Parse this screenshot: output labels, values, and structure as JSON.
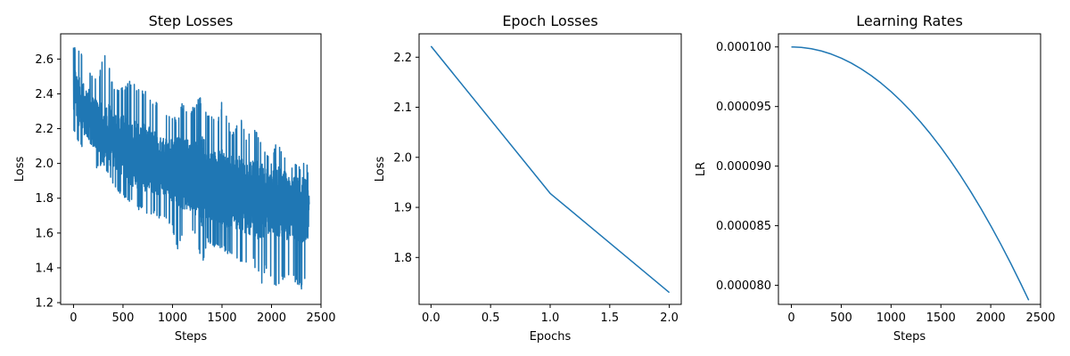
{
  "figure": {
    "background": "#ffffff",
    "line_color": "#1f77b4"
  },
  "chart_data": [
    {
      "id": "step-losses",
      "type": "line",
      "title": "Step Losses",
      "xlabel": "Steps",
      "ylabel": "Loss",
      "xlim": [
        -130,
        2500
      ],
      "ylim": [
        1.19,
        2.745
      ],
      "xticks": [
        0,
        500,
        1000,
        1500,
        2000,
        2500
      ],
      "yticks": [
        1.2,
        1.4,
        1.6,
        1.8,
        2.0,
        2.2,
        2.4,
        2.6
      ],
      "ytick_format": "1",
      "grid": false,
      "legend": "none",
      "series": [
        {
          "x": [
            0,
            50,
            100,
            150,
            200,
            250,
            300,
            350,
            400,
            450,
            500,
            550,
            600,
            650,
            700,
            750,
            800,
            850,
            900,
            950,
            1000,
            1050,
            1100,
            1150,
            1200,
            1250,
            1300,
            1350,
            1400,
            1450,
            1500,
            1550,
            1600,
            1650,
            1700,
            1750,
            1800,
            1850,
            1900,
            1950,
            2000,
            2050,
            2100,
            2150,
            2200,
            2250,
            2300,
            2350,
            2381
          ],
          "y_mean": [
            2.42,
            2.37,
            2.32,
            2.28,
            2.24,
            2.21,
            2.19,
            2.17,
            2.14,
            2.12,
            2.1,
            2.08,
            2.06,
            2.05,
            2.04,
            2.03,
            2.01,
            2.0,
            1.99,
            1.98,
            1.96,
            1.95,
            1.94,
            1.93,
            1.92,
            1.91,
            1.9,
            1.89,
            1.88,
            1.87,
            1.86,
            1.85,
            1.84,
            1.83,
            1.82,
            1.81,
            1.8,
            1.79,
            1.79,
            1.78,
            1.78,
            1.77,
            1.76,
            1.75,
            1.74,
            1.74,
            1.73,
            1.72,
            1.71
          ],
          "y_max": [
            2.68,
            2.67,
            2.61,
            2.55,
            2.5,
            2.47,
            2.66,
            2.59,
            2.45,
            2.42,
            2.44,
            2.48,
            2.47,
            2.45,
            2.42,
            2.44,
            2.36,
            2.35,
            2.26,
            2.3,
            2.28,
            2.26,
            2.35,
            2.33,
            2.32,
            2.36,
            2.4,
            2.3,
            2.28,
            2.25,
            2.36,
            2.27,
            2.18,
            2.22,
            2.25,
            2.15,
            2.24,
            2.2,
            2.13,
            2.07,
            2.0,
            2.15,
            2.08,
            2.02,
            1.97,
            2.01,
            1.98,
            2.03,
            1.92
          ],
          "y_min": [
            2.18,
            2.11,
            2.07,
            2.0,
            1.96,
            1.97,
            2.0,
            1.93,
            1.88,
            1.82,
            1.8,
            1.79,
            1.76,
            1.73,
            1.74,
            1.7,
            1.71,
            1.68,
            1.66,
            1.67,
            1.62,
            1.5,
            1.57,
            1.58,
            1.6,
            1.56,
            1.41,
            1.55,
            1.53,
            1.5,
            1.5,
            1.48,
            1.45,
            1.44,
            1.42,
            1.4,
            1.44,
            1.38,
            1.3,
            1.39,
            1.34,
            1.26,
            1.33,
            1.29,
            1.37,
            1.3,
            1.27,
            1.36,
            1.45
          ]
        }
      ]
    },
    {
      "id": "epoch-losses",
      "type": "line",
      "title": "Epoch Losses",
      "xlabel": "Epochs",
      "ylabel": "Loss",
      "xlim": [
        -0.1,
        2.1
      ],
      "ylim": [
        1.7063,
        2.2467
      ],
      "xticks": [
        0.0,
        0.5,
        1.0,
        1.5,
        2.0
      ],
      "yticks": [
        1.8,
        1.9,
        2.0,
        2.1,
        2.2
      ],
      "xtick_format": "1",
      "ytick_format": "1",
      "grid": false,
      "legend": "none",
      "series": [
        {
          "x": [
            0,
            1,
            2
          ],
          "y": [
            2.222,
            1.928,
            1.73
          ]
        }
      ]
    },
    {
      "id": "learning-rates",
      "type": "line",
      "title": "Learning Rates",
      "xlabel": "Steps",
      "ylabel": "LR",
      "xlim": [
        -130,
        2500
      ],
      "ylim": [
        7.84e-05,
        0.0001011
      ],
      "xticks": [
        0,
        500,
        1000,
        1500,
        2000,
        2500
      ],
      "yticks": [
        8e-05,
        8.5e-05,
        9e-05,
        9.5e-05,
        0.0001
      ],
      "ytick_format": "6",
      "grid": false,
      "legend": "none",
      "series": [
        {
          "x": [
            0,
            100,
            200,
            300,
            400,
            500,
            600,
            700,
            800,
            900,
            1000,
            1100,
            1200,
            1300,
            1400,
            1500,
            1600,
            1700,
            1800,
            1900,
            2000,
            2100,
            2200,
            2300,
            2381
          ],
          "y": [
            0.0001,
            9.99625e-05,
            9.985e-05,
            9.96626e-05,
            9.94e-05,
            9.90626e-05,
            9.86502e-05,
            9.81628e-05,
            9.76003e-05,
            9.6963e-05,
            9.62505e-05,
            9.54631e-05,
            9.46007e-05,
            9.36633e-05,
            9.26509e-05,
            9.15634e-05,
            9.0401e-05,
            8.91636e-05,
            8.78512e-05,
            8.64638e-05,
            8.50014e-05,
            8.3464e-05,
            8.18516e-05,
            8.01642e-05,
            7.875e-05
          ]
        }
      ]
    }
  ]
}
